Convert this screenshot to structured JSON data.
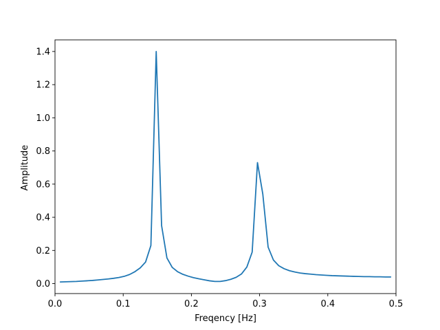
{
  "chart_data": {
    "type": "line",
    "title": "",
    "xlabel": "Freqency [Hz]",
    "ylabel": "Amplitude",
    "xlim": [
      0.0,
      0.5
    ],
    "ylim": [
      -0.06,
      1.47
    ],
    "xticks": [
      0.0,
      0.1,
      0.2,
      0.3,
      0.4,
      0.5
    ],
    "xtick_labels": [
      "0.0",
      "0.1",
      "0.2",
      "0.3",
      "0.4",
      "0.5"
    ],
    "yticks": [
      0.0,
      0.2,
      0.4,
      0.6,
      0.8,
      1.0,
      1.2,
      1.4
    ],
    "ytick_labels": [
      "0.0",
      "0.2",
      "0.4",
      "0.6",
      "0.8",
      "1.0",
      "1.2",
      "1.4"
    ],
    "grid": false,
    "legend": false,
    "line_color": "#1f77b4",
    "series": [
      {
        "x": [
          0.0078,
          0.0156,
          0.0234,
          0.0313,
          0.0391,
          0.0469,
          0.0547,
          0.0625,
          0.0703,
          0.0781,
          0.0859,
          0.0938,
          0.1016,
          0.1094,
          0.1172,
          0.125,
          0.1328,
          0.1406,
          0.1484,
          0.1563,
          0.1641,
          0.1719,
          0.1797,
          0.1875,
          0.1953,
          0.2031,
          0.2109,
          0.2188,
          0.2266,
          0.2344,
          0.2422,
          0.25,
          0.2578,
          0.2656,
          0.2734,
          0.2813,
          0.2891,
          0.2969,
          0.3047,
          0.3125,
          0.3203,
          0.3281,
          0.3359,
          0.3438,
          0.3516,
          0.3594,
          0.3672,
          0.375,
          0.3828,
          0.3906,
          0.3984,
          0.4063,
          0.4141,
          0.4219,
          0.4297,
          0.4375,
          0.4453,
          0.4531,
          0.4609,
          0.4688,
          0.4766,
          0.4844,
          0.4922
        ],
        "values": [
          0.01,
          0.011,
          0.012,
          0.013,
          0.015,
          0.017,
          0.019,
          0.022,
          0.025,
          0.028,
          0.032,
          0.037,
          0.044,
          0.055,
          0.072,
          0.095,
          0.13,
          0.23,
          1.4,
          0.35,
          0.155,
          0.098,
          0.072,
          0.056,
          0.045,
          0.036,
          0.029,
          0.023,
          0.017,
          0.013,
          0.013,
          0.018,
          0.026,
          0.038,
          0.058,
          0.1,
          0.19,
          0.73,
          0.54,
          0.22,
          0.142,
          0.108,
          0.09,
          0.078,
          0.07,
          0.064,
          0.06,
          0.057,
          0.054,
          0.052,
          0.05,
          0.048,
          0.047,
          0.046,
          0.045,
          0.044,
          0.043,
          0.042,
          0.042,
          0.041,
          0.041,
          0.04,
          0.04
        ]
      }
    ]
  }
}
